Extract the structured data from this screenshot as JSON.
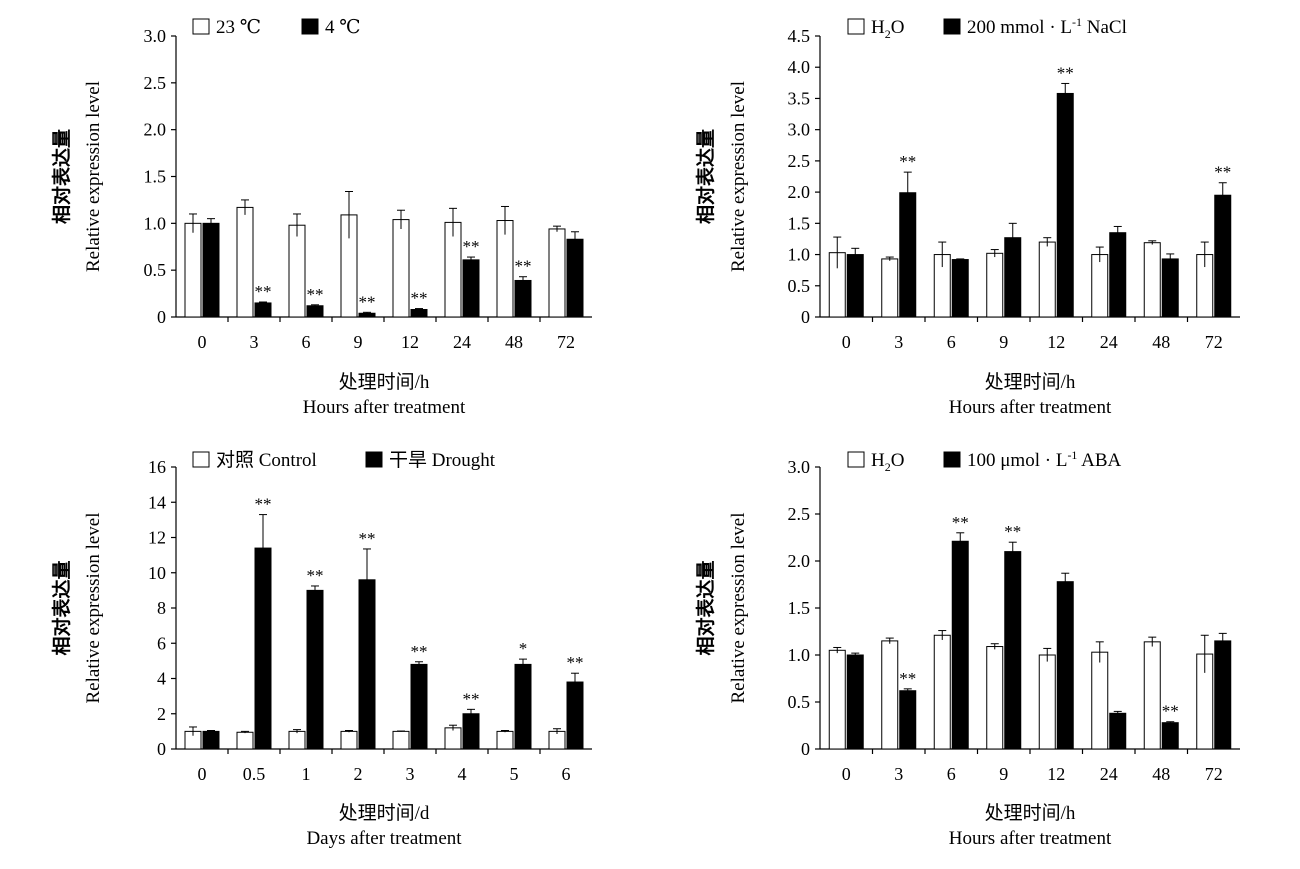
{
  "chart_data": [
    {
      "type": "bar",
      "ylabel_zh": "相对表达量",
      "ylabel_en": "Relative expression level",
      "xlabel_zh": "处理时间/h",
      "xlabel_en": "Hours after treatment",
      "ylim": [
        0,
        3.0
      ],
      "yticks": [
        "0",
        "0.5",
        "1.0",
        "1.5",
        "2.0",
        "2.5",
        "3.0"
      ],
      "yticks_values": [
        0,
        0.5,
        1.0,
        1.5,
        2.0,
        2.5,
        3.0
      ],
      "categories": [
        "0",
        "3",
        "6",
        "9",
        "12",
        "24",
        "48",
        "72"
      ],
      "legend": [
        {
          "label": "23 ℃",
          "fill": "#ffffff"
        },
        {
          "label": "4 ℃",
          "fill": "#000000"
        }
      ],
      "series": [
        {
          "name": "23 ℃",
          "values": [
            1.0,
            1.17,
            0.98,
            1.09,
            1.04,
            1.01,
            1.03,
            0.94
          ],
          "errors": [
            0.1,
            0.08,
            0.12,
            0.25,
            0.1,
            0.15,
            0.15,
            0.03
          ]
        },
        {
          "name": "4 ℃",
          "values": [
            1.0,
            0.15,
            0.12,
            0.04,
            0.08,
            0.61,
            0.39,
            0.83
          ],
          "errors": [
            0.05,
            0.01,
            0.01,
            0.01,
            0.01,
            0.03,
            0.04,
            0.08
          ]
        }
      ],
      "significance": [
        "",
        "**",
        "**",
        "**",
        "**",
        "**",
        "**",
        ""
      ]
    },
    {
      "type": "bar",
      "ylabel_zh": "相对表达量",
      "ylabel_en": "Relative expression level",
      "xlabel_zh": "处理时间/h",
      "xlabel_en": "Hours after treatment",
      "ylim": [
        0,
        4.5
      ],
      "yticks": [
        "0",
        "0.5",
        "1.0",
        "1.5",
        "2.0",
        "2.5",
        "3.0",
        "3.5",
        "4.0",
        "4.5"
      ],
      "yticks_values": [
        0,
        0.5,
        1.0,
        1.5,
        2.0,
        2.5,
        3.0,
        3.5,
        4.0,
        4.5
      ],
      "categories": [
        "0",
        "3",
        "6",
        "9",
        "12",
        "24",
        "48",
        "72"
      ],
      "legend": [
        {
          "label": "H",
          "sub": "2",
          "tail": "O",
          "fill": "#ffffff"
        },
        {
          "label": "200 mmol · L",
          "sup": "-1",
          "tail": " NaCl",
          "fill": "#000000"
        }
      ],
      "series": [
        {
          "name": "H2O",
          "values": [
            1.03,
            0.93,
            1.0,
            1.02,
            1.2,
            1.0,
            1.19,
            1.0
          ],
          "errors": [
            0.25,
            0.03,
            0.2,
            0.06,
            0.07,
            0.12,
            0.03,
            0.2
          ]
        },
        {
          "name": "200 mmol · L-1 NaCl",
          "values": [
            1.0,
            1.99,
            0.92,
            1.27,
            3.58,
            1.35,
            0.93,
            1.95
          ],
          "errors": [
            0.1,
            0.33,
            0.01,
            0.23,
            0.16,
            0.1,
            0.08,
            0.2
          ]
        }
      ],
      "significance": [
        "",
        "**",
        "",
        "",
        "**",
        "",
        "",
        "**"
      ]
    },
    {
      "type": "bar",
      "ylabel_zh": "相对表达量",
      "ylabel_en": "Relative expression level",
      "xlabel_zh": "处理时间/d",
      "xlabel_en": "Days after treatment",
      "ylim": [
        0,
        16
      ],
      "yticks": [
        "0",
        "2",
        "4",
        "6",
        "8",
        "10",
        "12",
        "14",
        "16"
      ],
      "yticks_values": [
        0,
        2,
        4,
        6,
        8,
        10,
        12,
        14,
        16
      ],
      "categories": [
        "0",
        "0.5",
        "1",
        "2",
        "3",
        "4",
        "5",
        "6"
      ],
      "legend": [
        {
          "label": "对照 Control",
          "fill": "#ffffff"
        },
        {
          "label": "干旱 Drought",
          "fill": "#000000"
        }
      ],
      "series": [
        {
          "name": "对照 Control",
          "values": [
            1.0,
            0.95,
            1.0,
            1.0,
            1.0,
            1.2,
            1.0,
            1.0
          ],
          "errors": [
            0.25,
            0.05,
            0.1,
            0.05,
            0.02,
            0.15,
            0.05,
            0.15
          ]
        },
        {
          "name": "干旱 Drought",
          "values": [
            1.0,
            11.4,
            9.0,
            9.6,
            4.8,
            2.0,
            4.8,
            3.8
          ],
          "errors": [
            0.05,
            1.9,
            0.25,
            1.75,
            0.15,
            0.25,
            0.3,
            0.5
          ]
        }
      ],
      "significance": [
        "",
        "**",
        "**",
        "**",
        "**",
        "**",
        "*",
        "**"
      ]
    },
    {
      "type": "bar",
      "ylabel_zh": "相对表达量",
      "ylabel_en": "Relative expression level",
      "xlabel_zh": "处理时间/h",
      "xlabel_en": "Hours after treatment",
      "ylim": [
        0,
        3.0
      ],
      "yticks": [
        "0",
        "0.5",
        "1.0",
        "1.5",
        "2.0",
        "2.5",
        "3.0"
      ],
      "yticks_values": [
        0,
        0.5,
        1.0,
        1.5,
        2.0,
        2.5,
        3.0
      ],
      "categories": [
        "0",
        "3",
        "6",
        "9",
        "12",
        "24",
        "48",
        "72"
      ],
      "legend": [
        {
          "label": "H",
          "sub": "2",
          "tail": "O",
          "fill": "#ffffff"
        },
        {
          "label": "100 μmol · L",
          "sup": "-1",
          "tail": " ABA",
          "fill": "#000000"
        }
      ],
      "series": [
        {
          "name": "H2O",
          "values": [
            1.05,
            1.15,
            1.21,
            1.09,
            1.0,
            1.03,
            1.14,
            1.01
          ],
          "errors": [
            0.03,
            0.03,
            0.05,
            0.03,
            0.07,
            0.11,
            0.05,
            0.2
          ]
        },
        {
          "name": "100 μmol · L-1 ABA",
          "values": [
            1.0,
            0.62,
            2.21,
            2.1,
            1.78,
            0.38,
            0.28,
            1.15
          ],
          "errors": [
            0.02,
            0.02,
            0.09,
            0.1,
            0.09,
            0.02,
            0.01,
            0.08
          ]
        }
      ],
      "significance": [
        "",
        "**",
        "**",
        "**",
        "",
        "",
        "**",
        ""
      ]
    }
  ]
}
